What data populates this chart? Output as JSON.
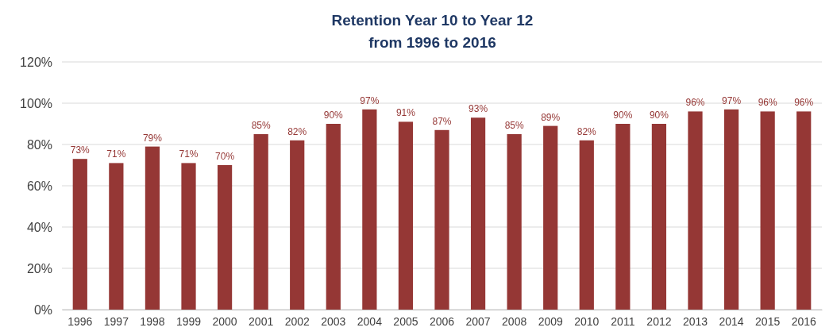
{
  "chart_data": {
    "type": "bar",
    "title": "Retention Year 10 to Year 12",
    "subtitle": "from  1996 to 2016",
    "categories": [
      "1996",
      "1997",
      "1998",
      "1999",
      "2000",
      "2001",
      "2002",
      "2003",
      "2004",
      "2005",
      "2006",
      "2007",
      "2008",
      "2009",
      "2010",
      "2011",
      "2012",
      "2013",
      "2014",
      "2015",
      "2016"
    ],
    "values": [
      73,
      71,
      79,
      71,
      70,
      85,
      82,
      90,
      97,
      91,
      87,
      93,
      85,
      89,
      82,
      90,
      90,
      96,
      97,
      96,
      96
    ],
    "value_labels": [
      "73%",
      "71%",
      "79%",
      "71%",
      "70%",
      "85%",
      "82%",
      "90%",
      "97%",
      "91%",
      "87%",
      "93%",
      "85%",
      "89%",
      "82%",
      "90%",
      "90%",
      "96%",
      "97%",
      "96%",
      "96%"
    ],
    "color": "#953735",
    "ylim": [
      0,
      120
    ],
    "yticks": [
      {
        "value": 0,
        "label": "0%"
      },
      {
        "value": 20,
        "label": "20%"
      },
      {
        "value": 40,
        "label": "40%"
      },
      {
        "value": 60,
        "label": "60%"
      },
      {
        "value": 80,
        "label": "80%"
      },
      {
        "value": 100,
        "label": "100%"
      },
      {
        "value": 120,
        "label": "120%"
      }
    ],
    "grid": "y"
  }
}
